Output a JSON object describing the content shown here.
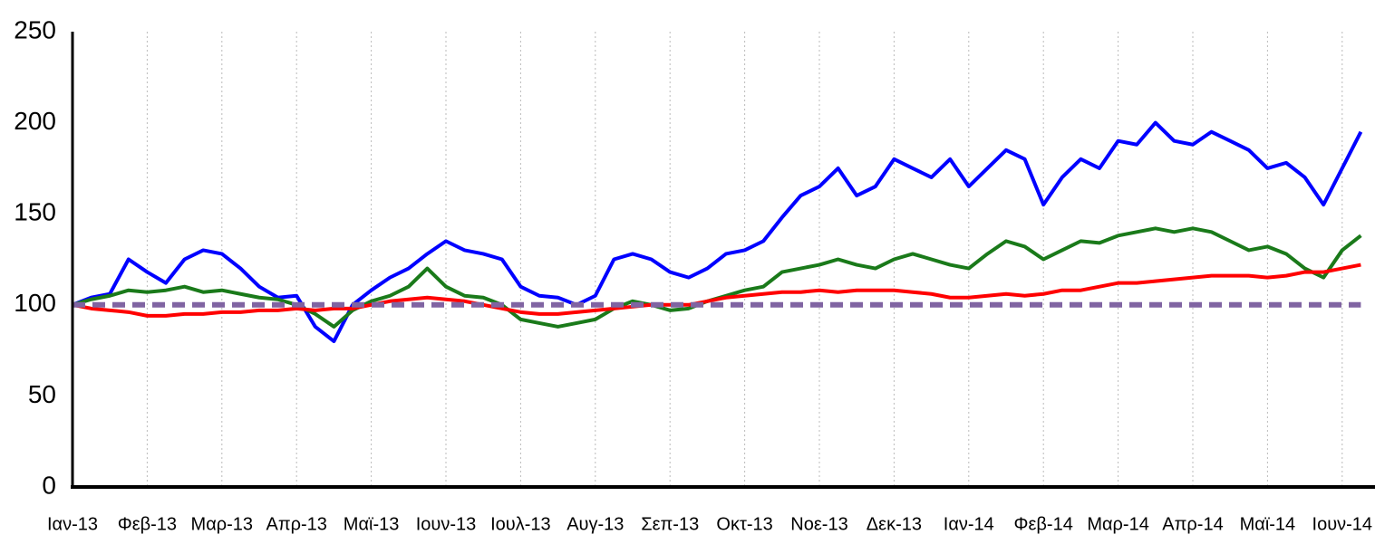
{
  "chart_data": {
    "type": "line",
    "categories": [
      "Ιαν-13",
      null,
      null,
      null,
      "Φεβ-13",
      null,
      null,
      null,
      "Μαρ-13",
      null,
      null,
      null,
      "Απρ-13",
      null,
      null,
      null,
      "Μαϊ-13",
      null,
      null,
      null,
      "Ιουν-13",
      null,
      null,
      null,
      "Ιουλ-13",
      null,
      null,
      null,
      "Αυγ-13",
      null,
      null,
      null,
      "Σεπ-13",
      null,
      null,
      null,
      "Οκτ-13",
      null,
      null,
      null,
      "Νοε-13",
      null,
      null,
      null,
      "Δεκ-13",
      null,
      null,
      null,
      "Ιαν-14",
      null,
      null,
      null,
      "Φεβ-14",
      null,
      null,
      null,
      "Μαρ-14",
      null,
      null,
      null,
      "Απρ-14",
      null,
      null,
      null,
      "Μαϊ-14",
      null,
      null,
      null,
      "Ιουν-14",
      null
    ],
    "series": [
      {
        "color": "#0000ff",
        "values": [
          100,
          104,
          106,
          125,
          118,
          112,
          125,
          130,
          128,
          120,
          110,
          104,
          105,
          88,
          80,
          100,
          108,
          115,
          120,
          128,
          135,
          130,
          128,
          125,
          110,
          105,
          104,
          100,
          105,
          125,
          128,
          125,
          118,
          115,
          120,
          128,
          130,
          135,
          148,
          160,
          165,
          175,
          160,
          165,
          180,
          175,
          170,
          180,
          165,
          175,
          185,
          180,
          155,
          170,
          180,
          175,
          190,
          188,
          200,
          190,
          188,
          195,
          190,
          185,
          175,
          178,
          170,
          155,
          175,
          195
        ]
      },
      {
        "color": "#1a7a1a",
        "values": [
          100,
          103,
          105,
          108,
          107,
          108,
          110,
          107,
          108,
          106,
          104,
          103,
          100,
          95,
          88,
          97,
          102,
          105,
          110,
          120,
          110,
          105,
          104,
          100,
          92,
          90,
          88,
          90,
          92,
          98,
          102,
          100,
          97,
          98,
          102,
          105,
          108,
          110,
          118,
          120,
          122,
          125,
          122,
          120,
          125,
          128,
          125,
          122,
          120,
          128,
          135,
          132,
          125,
          130,
          135,
          134,
          138,
          140,
          142,
          140,
          142,
          140,
          135,
          130,
          132,
          128,
          120,
          115,
          130,
          138
        ]
      },
      {
        "color": "#ff0000",
        "values": [
          100,
          98,
          97,
          96,
          94,
          94,
          95,
          95,
          96,
          96,
          97,
          97,
          98,
          97,
          98,
          98,
          100,
          102,
          103,
          104,
          103,
          102,
          100,
          98,
          96,
          95,
          95,
          96,
          97,
          98,
          99,
          100,
          100,
          100,
          102,
          104,
          105,
          106,
          107,
          107,
          108,
          107,
          108,
          108,
          108,
          107,
          106,
          104,
          104,
          105,
          106,
          105,
          106,
          108,
          108,
          110,
          112,
          112,
          113,
          114,
          115,
          116,
          116,
          116,
          115,
          116,
          118,
          118,
          120,
          122
        ]
      },
      {
        "color": "#8064a2",
        "dashed": true,
        "values": [
          100,
          100,
          100,
          100,
          100,
          100,
          100,
          100,
          100,
          100,
          100,
          100,
          100,
          100,
          100,
          100,
          100,
          100,
          100,
          100,
          100,
          100,
          100,
          100,
          100,
          100,
          100,
          100,
          100,
          100,
          100,
          100,
          100,
          100,
          100,
          100,
          100,
          100,
          100,
          100,
          100,
          100,
          100,
          100,
          100,
          100,
          100,
          100,
          100,
          100,
          100,
          100,
          100,
          100,
          100,
          100,
          100,
          100,
          100,
          100,
          100,
          100,
          100,
          100,
          100,
          100,
          100,
          100,
          100,
          100
        ]
      }
    ],
    "ylim": [
      0,
      250
    ],
    "yticks": [
      0,
      50,
      100,
      150,
      200,
      250
    ]
  }
}
